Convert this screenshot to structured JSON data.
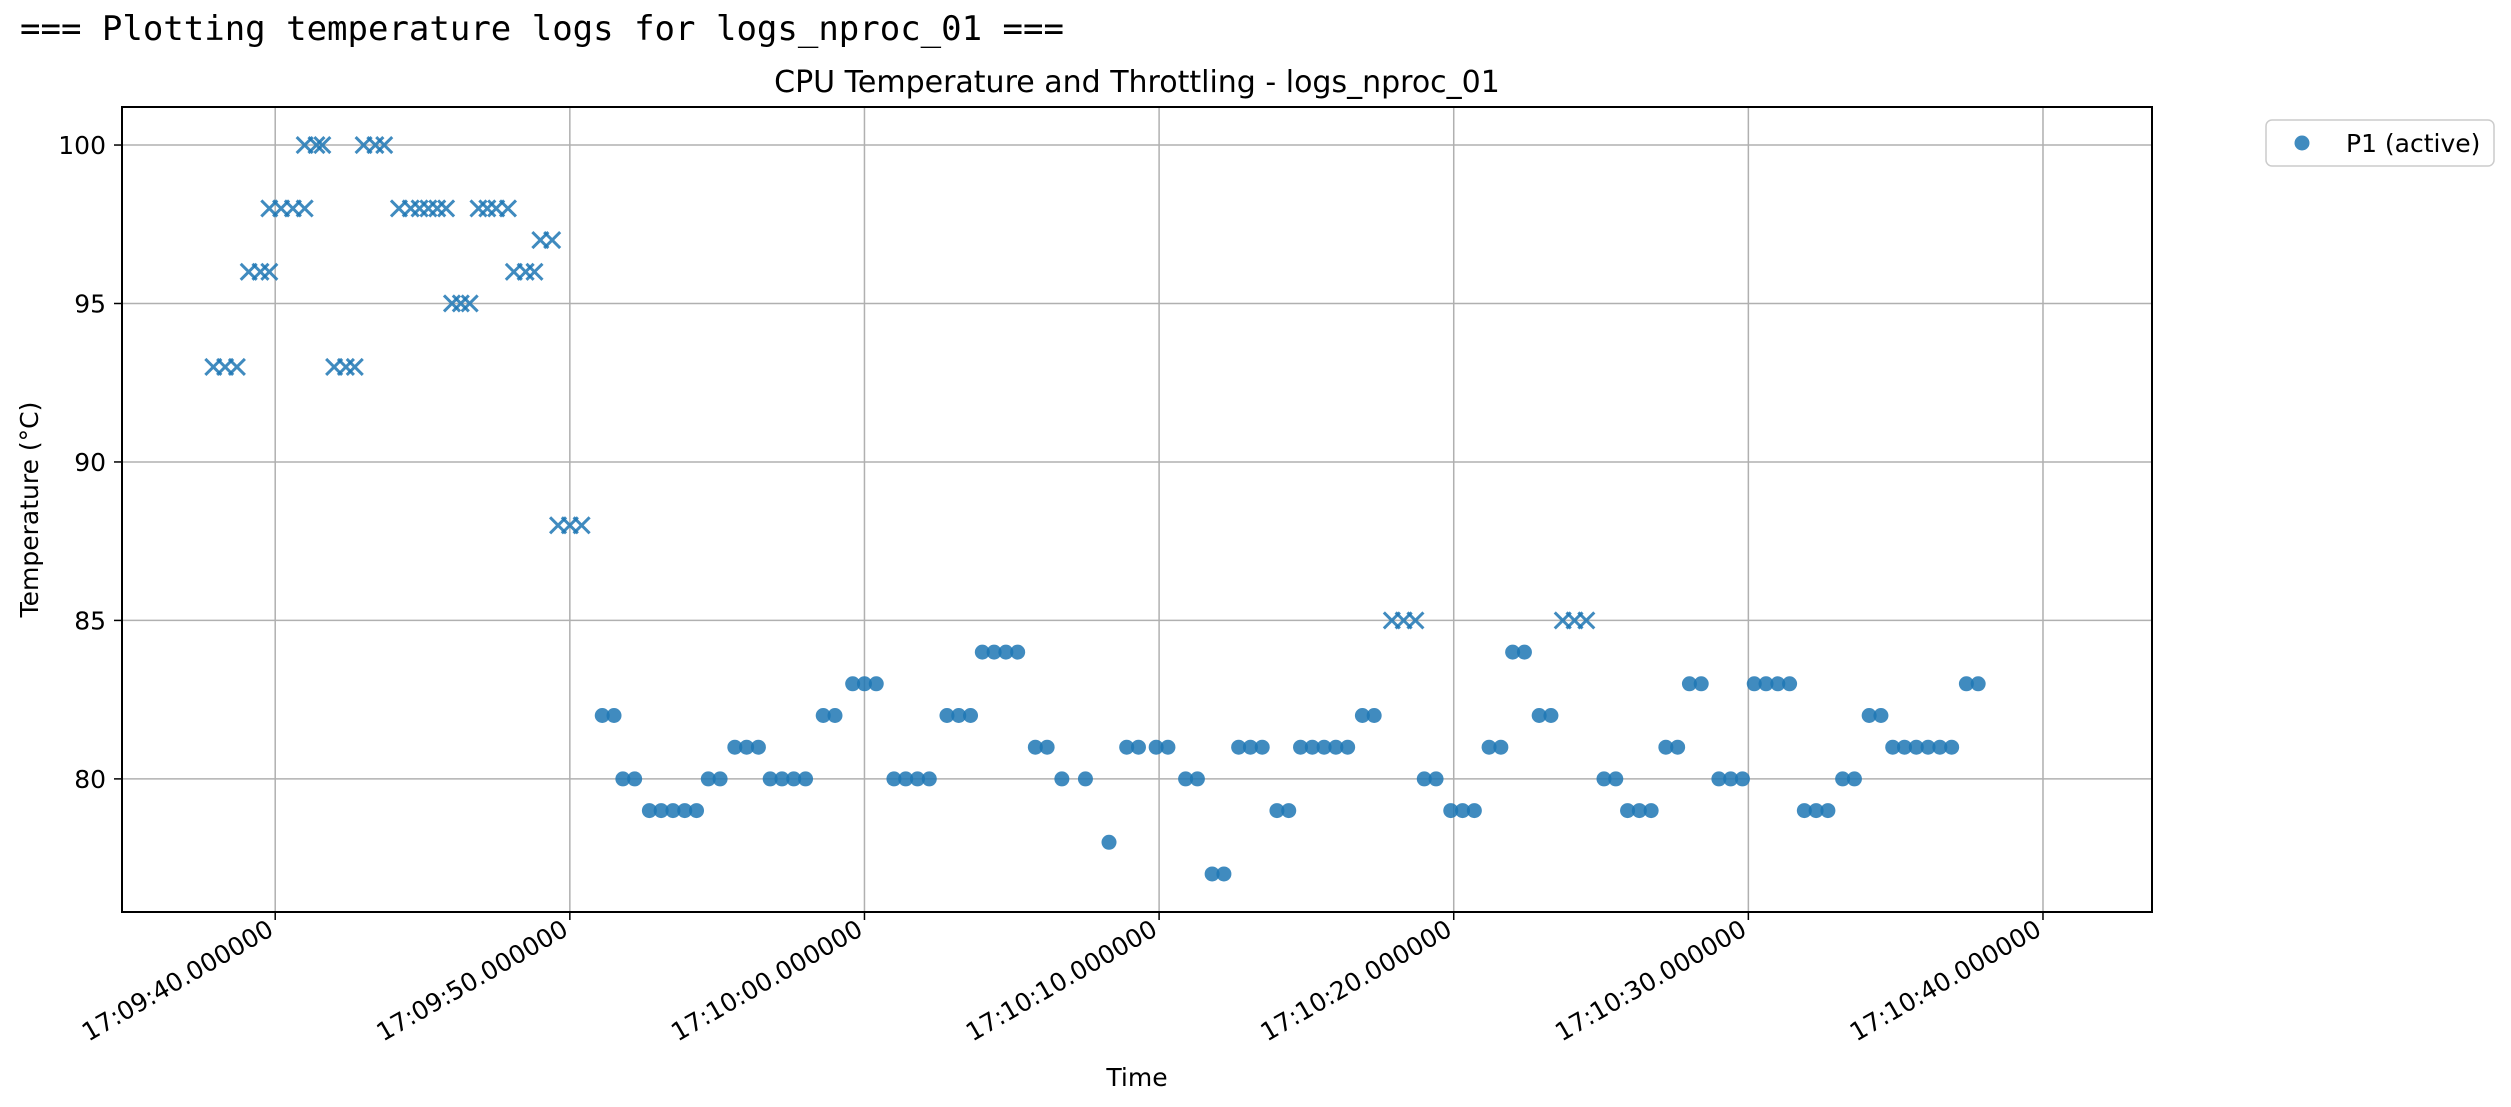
{
  "console": {
    "header_line": "=== Plotting temperature logs for logs_nproc_01 ==="
  },
  "chart_data": {
    "type": "scatter",
    "title": "CPU Temperature and Throttling - logs_nproc_01",
    "xlabel": "Time",
    "ylabel": "Temperature (°C)",
    "x_ticks": [
      "17:09:40.000000",
      "17:09:50.000000",
      "17:10:00.000000",
      "17:10:10.000000",
      "17:10:20.000000",
      "17:10:30.000000",
      "17:10:40.000000"
    ],
    "y_ticks": [
      80,
      85,
      90,
      95,
      100
    ],
    "xlim_seconds": [
      34.8,
      103.7
    ],
    "ylim": [
      75.8,
      101.2
    ],
    "grid": true,
    "legend_position": "outside-upper-right",
    "marker_color": "#1f77b4",
    "series": [
      {
        "name": "P1 (active)",
        "marker": "circle",
        "points": [
          {
            "t": 51.1,
            "v": 82
          },
          {
            "t": 51.5,
            "v": 82
          },
          {
            "t": 51.8,
            "v": 80
          },
          {
            "t": 52.2,
            "v": 80
          },
          {
            "t": 52.7,
            "v": 79
          },
          {
            "t": 53.1,
            "v": 79
          },
          {
            "t": 53.5,
            "v": 79
          },
          {
            "t": 53.9,
            "v": 79
          },
          {
            "t": 54.3,
            "v": 79
          },
          {
            "t": 54.7,
            "v": 80
          },
          {
            "t": 55.1,
            "v": 80
          },
          {
            "t": 55.6,
            "v": 81
          },
          {
            "t": 56.0,
            "v": 81
          },
          {
            "t": 56.4,
            "v": 81
          },
          {
            "t": 56.8,
            "v": 80
          },
          {
            "t": 57.2,
            "v": 80
          },
          {
            "t": 57.6,
            "v": 80
          },
          {
            "t": 58.0,
            "v": 80
          },
          {
            "t": 58.6,
            "v": 82
          },
          {
            "t": 59.0,
            "v": 82
          },
          {
            "t": 59.6,
            "v": 83
          },
          {
            "t": 60.0,
            "v": 83
          },
          {
            "t": 60.4,
            "v": 83
          },
          {
            "t": 61.0,
            "v": 80
          },
          {
            "t": 61.4,
            "v": 80
          },
          {
            "t": 61.8,
            "v": 80
          },
          {
            "t": 62.2,
            "v": 80
          },
          {
            "t": 62.8,
            "v": 82
          },
          {
            "t": 63.2,
            "v": 82
          },
          {
            "t": 63.6,
            "v": 82
          },
          {
            "t": 64.0,
            "v": 84
          },
          {
            "t": 64.4,
            "v": 84
          },
          {
            "t": 64.8,
            "v": 84
          },
          {
            "t": 65.2,
            "v": 84
          },
          {
            "t": 65.8,
            "v": 81
          },
          {
            "t": 66.2,
            "v": 81
          },
          {
            "t": 66.7,
            "v": 80
          },
          {
            "t": 67.5,
            "v": 80
          },
          {
            "t": 68.3,
            "v": 78
          },
          {
            "t": 68.9,
            "v": 81
          },
          {
            "t": 69.3,
            "v": 81
          },
          {
            "t": 69.9,
            "v": 81
          },
          {
            "t": 70.3,
            "v": 81
          },
          {
            "t": 70.9,
            "v": 80
          },
          {
            "t": 71.3,
            "v": 80
          },
          {
            "t": 71.8,
            "v": 77
          },
          {
            "t": 72.2,
            "v": 77
          },
          {
            "t": 72.7,
            "v": 81
          },
          {
            "t": 73.1,
            "v": 81
          },
          {
            "t": 73.5,
            "v": 81
          },
          {
            "t": 74.0,
            "v": 79
          },
          {
            "t": 74.4,
            "v": 79
          },
          {
            "t": 74.8,
            "v": 81
          },
          {
            "t": 75.2,
            "v": 81
          },
          {
            "t": 75.6,
            "v": 81
          },
          {
            "t": 76.0,
            "v": 81
          },
          {
            "t": 76.4,
            "v": 81
          },
          {
            "t": 76.9,
            "v": 82
          },
          {
            "t": 77.3,
            "v": 82
          },
          {
            "t": 79.0,
            "v": 80
          },
          {
            "t": 79.4,
            "v": 80
          },
          {
            "t": 79.9,
            "v": 79
          },
          {
            "t": 80.3,
            "v": 79
          },
          {
            "t": 80.7,
            "v": 79
          },
          {
            "t": 81.2,
            "v": 81
          },
          {
            "t": 81.6,
            "v": 81
          },
          {
            "t": 82.0,
            "v": 84
          },
          {
            "t": 82.4,
            "v": 84
          },
          {
            "t": 82.9,
            "v": 82
          },
          {
            "t": 83.3,
            "v": 82
          },
          {
            "t": 85.1,
            "v": 80
          },
          {
            "t": 85.5,
            "v": 80
          },
          {
            "t": 85.9,
            "v": 79
          },
          {
            "t": 86.3,
            "v": 79
          },
          {
            "t": 86.7,
            "v": 79
          },
          {
            "t": 87.2,
            "v": 81
          },
          {
            "t": 87.6,
            "v": 81
          },
          {
            "t": 88.0,
            "v": 83
          },
          {
            "t": 88.4,
            "v": 83
          },
          {
            "t": 89.0,
            "v": 80
          },
          {
            "t": 89.4,
            "v": 80
          },
          {
            "t": 89.8,
            "v": 80
          },
          {
            "t": 90.2,
            "v": 83
          },
          {
            "t": 90.6,
            "v": 83
          },
          {
            "t": 91.0,
            "v": 83
          },
          {
            "t": 91.4,
            "v": 83
          },
          {
            "t": 91.9,
            "v": 79
          },
          {
            "t": 92.3,
            "v": 79
          },
          {
            "t": 92.7,
            "v": 79
          },
          {
            "t": 93.2,
            "v": 80
          },
          {
            "t": 93.6,
            "v": 80
          },
          {
            "t": 94.1,
            "v": 82
          },
          {
            "t": 94.5,
            "v": 82
          },
          {
            "t": 94.9,
            "v": 81
          },
          {
            "t": 95.3,
            "v": 81
          },
          {
            "t": 95.7,
            "v": 81
          },
          {
            "t": 96.1,
            "v": 81
          },
          {
            "t": 96.5,
            "v": 81
          },
          {
            "t": 96.9,
            "v": 81
          },
          {
            "t": 97.4,
            "v": 83
          },
          {
            "t": 97.8,
            "v": 83
          }
        ]
      },
      {
        "marker": "x",
        "points": [
          {
            "t": 37.9,
            "v": 93
          },
          {
            "t": 38.3,
            "v": 93
          },
          {
            "t": 38.7,
            "v": 93
          },
          {
            "t": 39.1,
            "v": 96
          },
          {
            "t": 39.5,
            "v": 96
          },
          {
            "t": 39.8,
            "v": 96
          },
          {
            "t": 39.8,
            "v": 98
          },
          {
            "t": 40.2,
            "v": 98
          },
          {
            "t": 40.6,
            "v": 98
          },
          {
            "t": 41.0,
            "v": 98
          },
          {
            "t": 41.0,
            "v": 100
          },
          {
            "t": 41.4,
            "v": 100
          },
          {
            "t": 41.6,
            "v": 100
          },
          {
            "t": 42.0,
            "v": 93
          },
          {
            "t": 42.4,
            "v": 93
          },
          {
            "t": 42.7,
            "v": 93
          },
          {
            "t": 43.0,
            "v": 100
          },
          {
            "t": 43.4,
            "v": 100
          },
          {
            "t": 43.7,
            "v": 100
          },
          {
            "t": 44.2,
            "v": 98
          },
          {
            "t": 44.6,
            "v": 98
          },
          {
            "t": 44.9,
            "v": 98
          },
          {
            "t": 45.2,
            "v": 98
          },
          {
            "t": 45.5,
            "v": 98
          },
          {
            "t": 45.8,
            "v": 98
          },
          {
            "t": 46.0,
            "v": 95
          },
          {
            "t": 46.3,
            "v": 95
          },
          {
            "t": 46.6,
            "v": 95
          },
          {
            "t": 46.9,
            "v": 98
          },
          {
            "t": 47.2,
            "v": 98
          },
          {
            "t": 47.5,
            "v": 98
          },
          {
            "t": 47.9,
            "v": 98
          },
          {
            "t": 48.1,
            "v": 96
          },
          {
            "t": 48.5,
            "v": 96
          },
          {
            "t": 48.8,
            "v": 96
          },
          {
            "t": 49.0,
            "v": 97
          },
          {
            "t": 49.4,
            "v": 97
          },
          {
            "t": 49.6,
            "v": 88
          },
          {
            "t": 50.0,
            "v": 88
          },
          {
            "t": 50.4,
            "v": 88
          },
          {
            "t": 77.9,
            "v": 85
          },
          {
            "t": 78.3,
            "v": 85
          },
          {
            "t": 78.7,
            "v": 85
          },
          {
            "t": 83.7,
            "v": 85
          },
          {
            "t": 84.1,
            "v": 85
          },
          {
            "t": 84.5,
            "v": 85
          }
        ]
      }
    ]
  }
}
